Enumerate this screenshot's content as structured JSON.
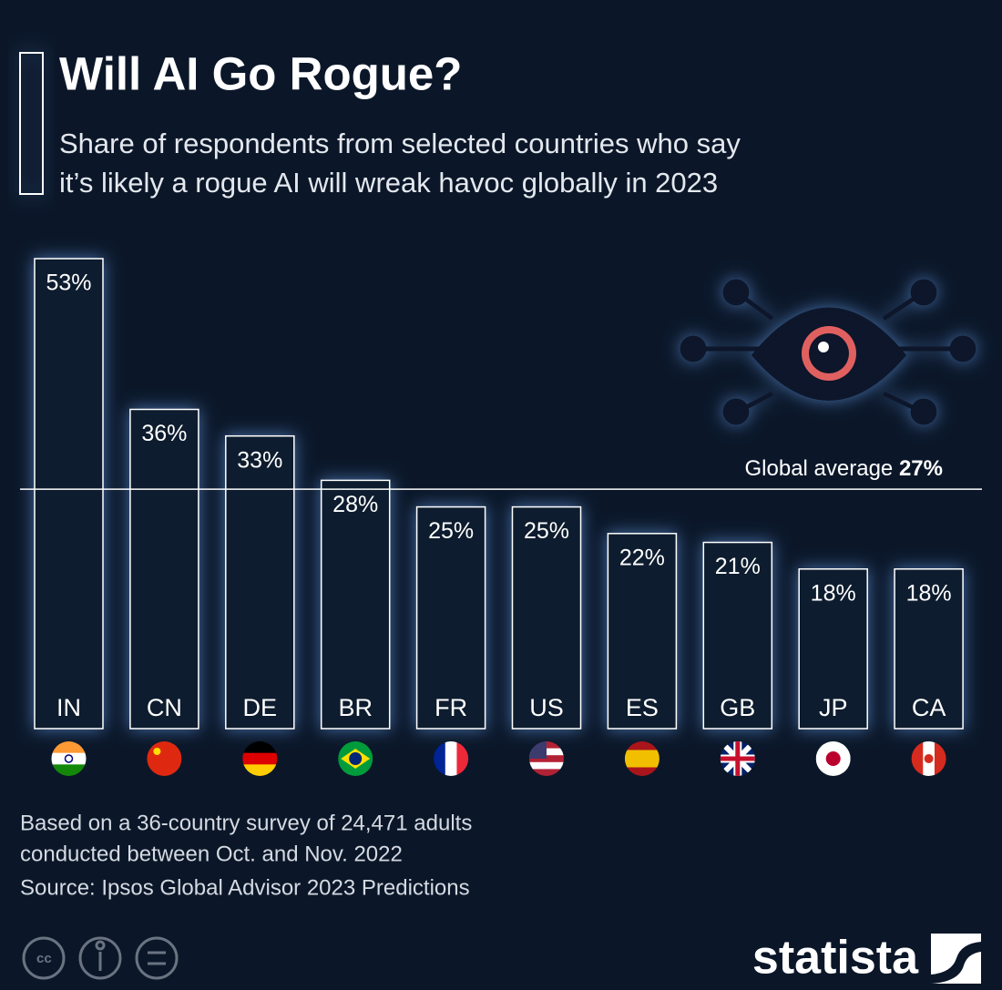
{
  "chart_data": {
    "type": "bar",
    "title": "Will AI Go Rogue?",
    "subtitle": [
      "Share of respondents from selected countries who say",
      "it’s likely a rogue AI will wreak havoc globally in 2023"
    ],
    "categories": [
      "IN",
      "CN",
      "DE",
      "BR",
      "FR",
      "US",
      "ES",
      "GB",
      "JP",
      "CA"
    ],
    "values": [
      53,
      36,
      33,
      28,
      25,
      25,
      22,
      21,
      18,
      18
    ],
    "value_labels": [
      "53%",
      "36%",
      "33%",
      "28%",
      "25%",
      "25%",
      "22%",
      "21%",
      "18%",
      "18%"
    ],
    "color": "#0b1a2e",
    "reference_line": {
      "label": "Global average",
      "value": 27,
      "value_label": "27%"
    },
    "notes": [
      "Based on a 36-country survey of 24,471 adults",
      "conducted between Oct. and Nov. 2022"
    ],
    "source": "Source: Ipsos Global Advisor 2023 Predictions",
    "brand": "statista"
  }
}
